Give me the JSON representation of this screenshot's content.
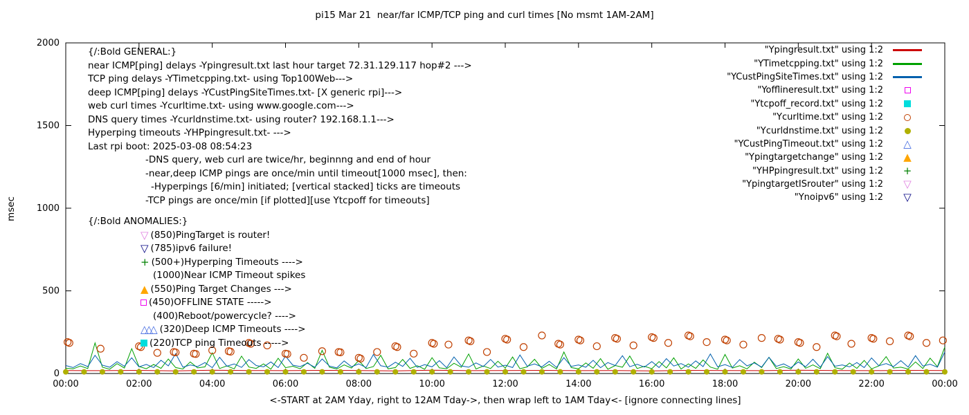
{
  "chart_data": {
    "type": "line",
    "title": "pi15 Mar 21  near/far ICMP/TCP ping and curl times [No msmt 1AM-2AM]",
    "xlabel": "<-START at 2AM Yday, right to 12AM Tday->, then wrap left to 1AM Tday<- [ignore connecting lines]",
    "ylabel": "msec",
    "xlim": [
      0,
      24
    ],
    "ylim": [
      0,
      2000
    ],
    "grid": false,
    "legend_position": "top-right",
    "x_tick_hours": [
      0,
      2,
      4,
      6,
      8,
      10,
      12,
      14,
      16,
      18,
      20,
      22,
      24
    ],
    "x_tick_labels": [
      "00:00",
      "02:00",
      "04:00",
      "06:00",
      "08:00",
      "10:00",
      "12:00",
      "14:00",
      "16:00",
      "18:00",
      "20:00",
      "22:00",
      "00:00"
    ],
    "y_ticks": [
      0,
      500,
      1000,
      1500,
      2000
    ],
    "series": [
      {
        "name": "Ypingresult",
        "legend": "\"Ypingresult.txt\" using 1:2",
        "type": "line",
        "marker": "line",
        "color": "#cc0000",
        "x_start": 0,
        "x_step": 1,
        "values": [
          18,
          17,
          19,
          16,
          20,
          18,
          17,
          19,
          18,
          16,
          20,
          17,
          18,
          19,
          17,
          18,
          16,
          19,
          18,
          17,
          20,
          18,
          17,
          19,
          18
        ]
      },
      {
        "name": "YTimetcpping",
        "legend": "\"YTimetcpping.txt\" using 1:2",
        "type": "line",
        "marker": "line",
        "color": "#00a000",
        "x_start": 0,
        "x_step": 0.2,
        "values": [
          32,
          28,
          45,
          30,
          185,
          38,
          26,
          60,
          33,
          150,
          42,
          29,
          55,
          31,
          88,
          36,
          27,
          70,
          34,
          40,
          125,
          30,
          46,
          28,
          105,
          39,
          31,
          58,
          26,
          92,
          35,
          44,
          29,
          66,
          31,
          140,
          38,
          27,
          52,
          33,
          78,
          30,
          42,
          110,
          28,
          36,
          85,
          31,
          47,
          26,
          96,
          34,
          29,
          62,
          38,
          118,
          27,
          45,
          30,
          74,
          33,
          100,
          29,
          40,
          86,
          31,
          55,
          27,
          130,
          36,
          28,
          64,
          32,
          90,
          26,
          48,
          38,
          106,
          30,
          44,
          29,
          72,
          34,
          95,
          27,
          58,
          31,
          82,
          39,
          26,
          115,
          33,
          47,
          28,
          68,
          36,
          98,
          30,
          41,
          27,
          88,
          32,
          52,
          29,
          122,
          35,
          26,
          63,
          31,
          79,
          28,
          46,
          102,
          33,
          38,
          27,
          70,
          30,
          93,
          41,
          160
        ]
      },
      {
        "name": "YCustPingSiteTimes",
        "legend": "\"YCustPingSiteTimes.txt\" using 1:2",
        "type": "line",
        "marker": "line",
        "color": "#0060ad",
        "x_start": 0,
        "x_step": 0.2,
        "values": [
          48,
          36,
          60,
          42,
          110,
          50,
          38,
          72,
          44,
          95,
          40,
          55,
          36,
          80,
          46,
          120,
          38,
          52,
          42,
          66,
          35,
          98,
          44,
          58,
          37,
          84,
          48,
          40,
          70,
          36,
          105,
          50,
          42,
          62,
          38,
          88,
          45,
          34,
          76,
          41,
          58,
          36,
          115,
          47,
          39,
          68,
          43,
          92,
          37,
          54,
          40,
          78,
          35,
          100,
          46,
          38,
          64,
          42,
          85,
          39,
          50,
          36,
          112,
          44,
          58,
          40,
          74,
          37,
          96,
          43,
          52,
          38,
          80,
          35,
          66,
          48,
          108,
          41,
          56,
          39,
          72,
          36,
          90,
          45,
          60,
          38,
          76,
          42,
          118,
          40,
          54,
          37,
          84,
          46,
          64,
          39,
          98,
          43,
          58,
          35,
          70,
          41,
          86,
          38,
          102,
          44,
          52,
          40,
          66,
          36,
          94,
          47,
          60,
          42,
          78,
          39,
          108,
          45,
          56,
          38,
          130
        ]
      },
      {
        "name": "Yofflineresult",
        "legend": "\"Yofflineresult.txt\" using 1:2",
        "type": "scatter",
        "marker": "square-open",
        "color": "#ee00ee",
        "x": [],
        "y": []
      },
      {
        "name": "Ytcpoff_record",
        "legend": "\"Ytcpoff_record.txt\" using 1:2",
        "type": "scatter",
        "marker": "square-fill",
        "color": "#00dddd",
        "x": [],
        "y": []
      },
      {
        "name": "Ycurltime",
        "legend": "\"Ycurltime.txt\" using 1:2",
        "type": "scatter",
        "marker": "circle-open",
        "color": "#c04000",
        "x": [
          0.05,
          0.1,
          0.95,
          2.0,
          2.05,
          2.5,
          2.95,
          3.0,
          3.5,
          3.55,
          4.0,
          4.45,
          4.5,
          5.0,
          5.05,
          5.5,
          6.0,
          6.05,
          6.5,
          7.0,
          7.45,
          7.5,
          8.0,
          8.05,
          8.5,
          9.0,
          9.05,
          9.5,
          10.0,
          10.05,
          10.45,
          11.0,
          11.05,
          11.5,
          12.0,
          12.05,
          12.5,
          13.0,
          13.45,
          13.5,
          14.0,
          14.05,
          14.5,
          15.0,
          15.05,
          15.5,
          16.0,
          16.05,
          16.45,
          17.0,
          17.05,
          17.5,
          18.0,
          18.05,
          18.5,
          19.0,
          19.45,
          19.5,
          20.0,
          20.05,
          20.5,
          21.0,
          21.05,
          21.45,
          22.0,
          22.05,
          22.5,
          23.0,
          23.05,
          23.5,
          23.95
        ],
        "y": [
          190,
          185,
          150,
          165,
          160,
          125,
          130,
          128,
          120,
          118,
          140,
          135,
          132,
          185,
          180,
          170,
          120,
          118,
          95,
          135,
          130,
          128,
          95,
          90,
          130,
          165,
          160,
          120,
          185,
          180,
          175,
          200,
          195,
          130,
          210,
          205,
          160,
          230,
          180,
          175,
          205,
          200,
          165,
          215,
          210,
          170,
          220,
          215,
          185,
          230,
          225,
          190,
          205,
          200,
          175,
          215,
          210,
          205,
          190,
          185,
          160,
          230,
          225,
          180,
          215,
          210,
          195,
          230,
          225,
          185,
          200
        ]
      },
      {
        "name": "Ycurldnstime",
        "legend": "\"Ycurldnstime.txt\" using 1:2",
        "type": "scatter",
        "marker": "circle-fill",
        "color": "#b0b000",
        "x": [
          0,
          0.5,
          1,
          1.5,
          2,
          2.5,
          3,
          3.5,
          4,
          4.5,
          5,
          5.5,
          6,
          6.5,
          7,
          7.5,
          8,
          8.5,
          9,
          9.5,
          10,
          10.5,
          11,
          11.5,
          12,
          12.5,
          13,
          13.5,
          14,
          14.5,
          15,
          15.5,
          16,
          16.5,
          17,
          17.5,
          18,
          18.5,
          19,
          19.5,
          20,
          20.5,
          21,
          21.5,
          22,
          22.5,
          23,
          23.5,
          24
        ],
        "y": [
          10,
          10,
          10,
          10,
          10,
          10,
          10,
          10,
          10,
          10,
          10,
          10,
          10,
          10,
          10,
          10,
          10,
          10,
          10,
          10,
          10,
          10,
          10,
          10,
          10,
          10,
          10,
          10,
          10,
          10,
          10,
          10,
          10,
          10,
          10,
          10,
          10,
          10,
          10,
          10,
          10,
          10,
          10,
          10,
          10,
          10,
          10,
          10,
          10
        ]
      },
      {
        "name": "YCustPingTimeout",
        "legend": "\"YCustPingTimeout.txt\" using 1:2",
        "type": "scatter",
        "marker": "tri-up-open",
        "color": "#4169e1",
        "x": [],
        "y": []
      },
      {
        "name": "Ypingtargetchange",
        "legend": "\"Ypingtargetchange\" using 1:2",
        "type": "scatter",
        "marker": "tri-up-fill",
        "color": "#ffa500",
        "x": [],
        "y": []
      },
      {
        "name": "YHPpingresult",
        "legend": "\"YHPpingresult.txt\" using 1:2",
        "type": "scatter",
        "marker": "plus",
        "color": "#008000",
        "x": [],
        "y": []
      },
      {
        "name": "YpingtargetISrouter",
        "legend": "\"YpingtargetISrouter\" using 1:2",
        "type": "scatter",
        "marker": "tri-down-open",
        "color": "#e080e0",
        "x": [],
        "y": []
      },
      {
        "name": "Ynoipv6",
        "legend": "\"Ynoipv6\" using 1:2",
        "type": "scatter",
        "marker": "tri-down-open",
        "color": "#000080",
        "x": [],
        "y": []
      }
    ]
  },
  "annotations": {
    "general": {
      "header": "{/:Bold GENERAL:}",
      "lines": [
        {
          "text": "near ICMP[ping] delays -Ypingresult.txt last hour target 72.31.129.117 hop#2 --->",
          "indent": 0
        },
        {
          "text": "TCP ping delays -YTimetcpping.txt- using Top100Web--->",
          "indent": 0
        },
        {
          "text": "deep ICMP[ping] delays -YCustPingSiteTimes.txt- [X generic rpi]--->",
          "indent": 0
        },
        {
          "text": "web curl times -Ycurltime.txt- using www.google.com--->",
          "indent": 0
        },
        {
          "text": "DNS query times -Ycurldnstime.txt- using router? 192.168.1.1--->",
          "indent": 0
        },
        {
          "text": "Hyperping timeouts -YHPpingresult.txt- --->",
          "indent": 0
        },
        {
          "text": "Last rpi boot: 2025-03-08 08:54:23",
          "indent": 0
        },
        {
          "text": "-DNS query, web curl are twice/hr, beginnng and end of hour",
          "indent": 1
        },
        {
          "text": "-near,deep ICMP pings are once/min until timeout[1000 msec], then:",
          "indent": 1
        },
        {
          "text": "-Hyperpings [6/min] initiated; [vertical stacked] ticks are timeouts",
          "indent": 2
        },
        {
          "text": "-TCP pings are once/min [if plotted][use Ytcpoff for timeouts]",
          "indent": 1
        }
      ]
    },
    "anomalies": {
      "header": "{/:Bold ANOMALIES:}",
      "lines": [
        {
          "marker": "tri-down-open",
          "color": "#e080e0",
          "count": 1,
          "text": "(850)PingTarget is router!"
        },
        {
          "marker": "tri-down-open",
          "color": "#000080",
          "count": 1,
          "text": "(785)ipv6 failure!"
        },
        {
          "marker": "plus",
          "color": "#008000",
          "count": 1,
          "text": "(500+)Hyperping Timeouts ---->"
        },
        {
          "marker": null,
          "color": null,
          "count": 0,
          "text": "(1000)Near ICMP Timeout spikes"
        },
        {
          "marker": "tri-up-fill",
          "color": "#ffa500",
          "count": 1,
          "text": "(550)Ping Target Changes --->"
        },
        {
          "marker": "square-open",
          "color": "#ee00ee",
          "count": 1,
          "text": "(450)OFFLINE STATE ----->"
        },
        {
          "marker": null,
          "color": null,
          "count": 0,
          "text": "(400)Reboot/powercycle? ---->"
        },
        {
          "marker": "tri-up-open",
          "color": "#4169e1",
          "count": 3,
          "text": "(320)Deep ICMP Timeouts ---->"
        },
        {
          "marker": "square-fill",
          "color": "#00dddd",
          "count": 1,
          "text": "(220)TCP ping Timeouts ----->"
        }
      ]
    }
  }
}
